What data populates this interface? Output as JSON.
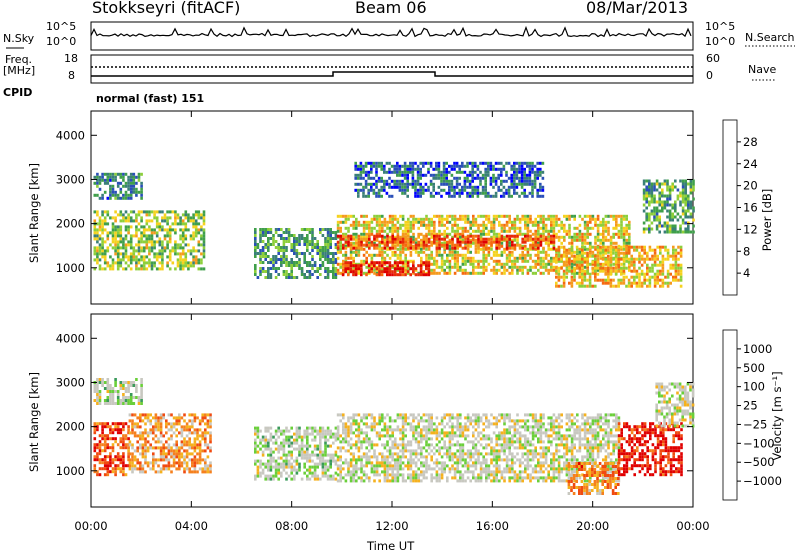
{
  "header": {
    "station": "Stokkseyri (fitACF)",
    "beam": "Beam 06",
    "date": "08/Mar/2013"
  },
  "strip": {
    "nsky_label": "N.Sky",
    "nsky_ticks": [
      "10^5",
      "10^0"
    ],
    "nsearch_label": "N.Search",
    "nsearch_ticks": [
      "10^5",
      "10^0"
    ],
    "freq_label_1": "Freq.",
    "freq_label_2": "[MHz]",
    "freq_ticks": [
      "18",
      "8"
    ],
    "nave_label": "Nave",
    "nave_ticks": [
      "60",
      "0"
    ],
    "cpid_label": "CPID",
    "cpid_text": "normal (fast) 151"
  },
  "colors": {
    "power": [
      "#0000ff",
      "#2a4fb8",
      "#3a7f78",
      "#3f9f4a",
      "#8dcf3a",
      "#f5d21e",
      "#f59a1e",
      "#f56a10",
      "#e82a0a",
      "#e00000"
    ],
    "velocity": [
      "#2a3fae",
      "#2a6ab0",
      "#3a9a5a",
      "#6acf3a",
      "#c8c8c0",
      "#c8c8c0",
      "#f5b11e",
      "#f5801e",
      "#f04a10",
      "#e00000"
    ]
  },
  "chart_data": [
    {
      "type": "heatmap",
      "title": "Power",
      "ylabel": "Slant Range [km]",
      "yticks": [
        "1000",
        "2000",
        "3000",
        "4000"
      ],
      "ylim": [
        180,
        4550
      ],
      "xticks": [
        "00:00",
        "04:00",
        "08:00",
        "12:00",
        "16:00",
        "20:00",
        "00:00"
      ],
      "xlim_hours": [
        0,
        24
      ],
      "colorbar": {
        "label": "Power [dB]",
        "ticks": [
          "4",
          "8",
          "12",
          "16",
          "20",
          "24",
          "28"
        ],
        "range": [
          0,
          30
        ]
      },
      "regions": [
        {
          "t0": 0.1,
          "t1": 4.5,
          "r0": 1000,
          "r1": 2300,
          "level": 0.45
        },
        {
          "t0": 0.1,
          "t1": 2.0,
          "r0": 2550,
          "r1": 3150,
          "level": 0.25
        },
        {
          "t0": 6.5,
          "t1": 9.8,
          "r0": 800,
          "r1": 1900,
          "level": 0.3
        },
        {
          "t0": 9.8,
          "t1": 21.5,
          "r0": 900,
          "r1": 2200,
          "level": 0.55
        },
        {
          "t0": 10.0,
          "t1": 13.5,
          "r0": 850,
          "r1": 1150,
          "level": 0.95
        },
        {
          "t0": 9.8,
          "t1": 18.5,
          "r0": 1450,
          "r1": 1750,
          "level": 0.8
        },
        {
          "t0": 18.5,
          "t1": 23.5,
          "r0": 550,
          "r1": 1500,
          "level": 0.6
        },
        {
          "t0": 10.5,
          "t1": 18.0,
          "r0": 2600,
          "r1": 3400,
          "level": 0.2
        },
        {
          "t0": 22.0,
          "t1": 24.0,
          "r0": 1800,
          "r1": 3000,
          "level": 0.35
        }
      ]
    },
    {
      "type": "heatmap",
      "title": "Velocity",
      "ylabel": "Slant Range [km]",
      "yticks": [
        "1000",
        "2000",
        "3000",
        "4000"
      ],
      "ylim": [
        180,
        4550
      ],
      "xticks": [
        "00:00",
        "04:00",
        "08:00",
        "12:00",
        "16:00",
        "20:00",
        "00:00"
      ],
      "xlabel": "Time UT",
      "xlim_hours": [
        0,
        24
      ],
      "colorbar": {
        "label": "Velocity [m s⁻¹]",
        "ticks": [
          "1000",
          "500",
          "100",
          "25",
          "−25",
          "−100",
          "−500",
          "−1000"
        ]
      },
      "regions": [
        {
          "t0": 0.1,
          "t1": 1.5,
          "r0": 900,
          "r1": 2100,
          "level": 0.85
        },
        {
          "t0": 1.5,
          "t1": 4.8,
          "r0": 1000,
          "r1": 2300,
          "level": 0.7
        },
        {
          "t0": 0.1,
          "t1": 2.0,
          "r0": 2550,
          "r1": 3100,
          "level": 0.45
        },
        {
          "t0": 6.5,
          "t1": 9.8,
          "r0": 800,
          "r1": 2000,
          "level": 0.45
        },
        {
          "t0": 9.8,
          "t1": 21.0,
          "r0": 800,
          "r1": 2300,
          "level": 0.5
        },
        {
          "t0": 19.0,
          "t1": 21.0,
          "r0": 500,
          "r1": 1200,
          "level": 0.75
        },
        {
          "t0": 21.0,
          "t1": 23.5,
          "r0": 900,
          "r1": 2100,
          "level": 0.95
        },
        {
          "t0": 22.5,
          "t1": 24.0,
          "r0": 2000,
          "r1": 3000,
          "level": 0.5
        }
      ]
    }
  ]
}
